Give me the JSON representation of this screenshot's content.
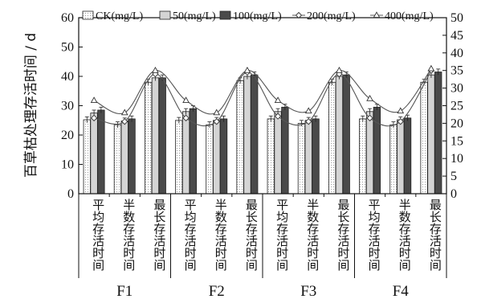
{
  "chart_data": {
    "type": "bar",
    "ylabel": "百草枯处理存活时间 / d",
    "ylim": [
      0,
      60
    ],
    "y_ticks": [
      "0",
      "10",
      "20",
      "30",
      "40",
      "50",
      "60"
    ],
    "y2lim": [
      0,
      50
    ],
    "y2_ticks": [
      "0",
      "5",
      "10",
      "15",
      "20",
      "25",
      "30",
      "35",
      "40",
      "45",
      "50"
    ],
    "groups": [
      "F1",
      "F2",
      "F3",
      "F4"
    ],
    "categories": [
      "平均存活时间",
      "半数存活时间",
      "最长存活时间"
    ],
    "legend_position": "top",
    "bar_series": [
      {
        "name": "CK(mg/L)",
        "color": "#f2f2f2",
        "values": [
          25.2,
          23.5,
          38,
          25,
          23.5,
          38.5,
          25.5,
          24,
          38,
          25.5,
          23.5,
          38
        ]
      },
      {
        "name": "50(mg/L)",
        "color": "#d4d4d4",
        "values": [
          27.5,
          24.8,
          39.5,
          28,
          25,
          40,
          28,
          25,
          40,
          28,
          25.2,
          40.5
        ]
      },
      {
        "name": "100(mg/L)",
        "color": "#4a4a4a",
        "values": [
          28.5,
          25.5,
          39.5,
          29,
          25.5,
          40.5,
          29.5,
          25.5,
          40.5,
          29.5,
          25.8,
          41.5
        ]
      }
    ],
    "line_series": [
      {
        "name": "200(mg/L)",
        "marker": "diamond",
        "axis": "right",
        "values": [
          21.5,
          20.5,
          34,
          21.5,
          20.5,
          34.5,
          22,
          20.5,
          34,
          21.5,
          20.5,
          35
        ]
      },
      {
        "name": "400(mg/L)",
        "marker": "triangle",
        "axis": "right",
        "values": [
          26.5,
          23,
          35,
          26.5,
          23,
          35,
          26.5,
          23.5,
          35,
          27,
          23.5,
          35.5
        ]
      }
    ]
  }
}
